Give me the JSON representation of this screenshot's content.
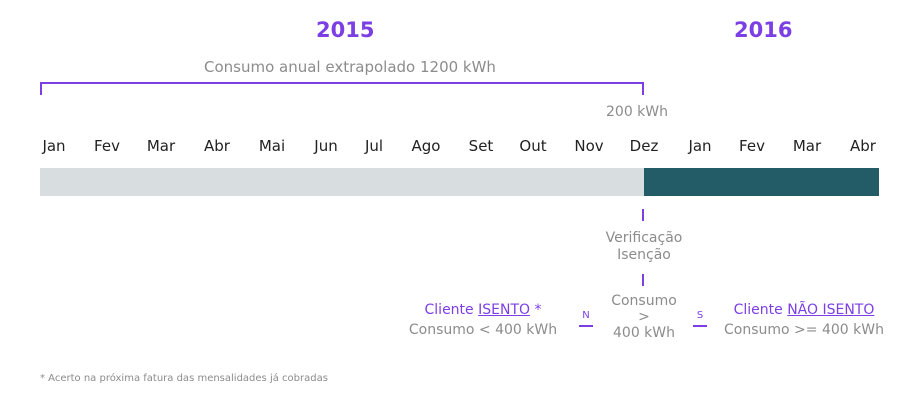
{
  "years": {
    "y2015": "2015",
    "y2016": "2016"
  },
  "annual_label": "Consumo anual extrapolado 1200 kWh",
  "month_label": "200 kWh",
  "months": [
    "Jan",
    "Fev",
    "Mar",
    "Abr",
    "Mai",
    "Jun",
    "Jul",
    "Ago",
    "Set",
    "Out",
    "Nov",
    "Dez",
    "Jan",
    "Fev",
    "Mar",
    "Abr"
  ],
  "verification": {
    "line1": "Verificação",
    "line2": "Isenção"
  },
  "left_outcome": {
    "prefix": "Cliente ",
    "status": "ISENTO",
    "suffix": " *",
    "condition": "Consumo < 400 kWh"
  },
  "decision": {
    "line1": "Consumo",
    "line2": ">",
    "line3": "400 kWh"
  },
  "branch_no": "N",
  "branch_yes": "S",
  "right_outcome": {
    "prefix": "Cliente ",
    "status": "NÃO ISENTO",
    "condition": "Consumo >= 400 kWh"
  },
  "footnote": "* Acerto na próxima fatura das mensalidades já cobradas",
  "colors": {
    "accent": "#7b3fe4",
    "bar_2015": "#d8dedf",
    "bar_2016": "#235b66",
    "grey_text": "#8c8c8c"
  }
}
